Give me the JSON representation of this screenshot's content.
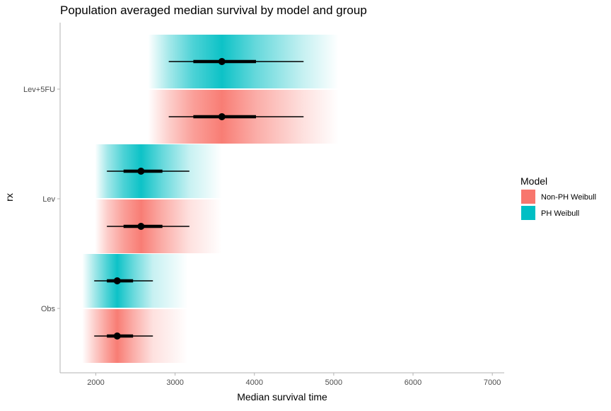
{
  "chart_data": {
    "type": "interval",
    "title": "Population averaged median survival by model and group",
    "xlabel": "Median survival time",
    "ylabel": "rx",
    "xlim": [
      1550,
      7150
    ],
    "x_ticks": [
      2000,
      3000,
      4000,
      5000,
      6000,
      7000
    ],
    "x_tick_labels": [
      "2000",
      "3000",
      "4000",
      "5000",
      "6000",
      "7000"
    ],
    "categories": [
      "Obs",
      "Lev",
      "Lev+5FU"
    ],
    "legend": {
      "title": "Model",
      "position": "right",
      "entries": [
        {
          "name": "Non-PH Weibull",
          "color": "#F8766D"
        },
        {
          "name": "PH Weibull",
          "color": "#00BFC4"
        }
      ]
    },
    "grid": false,
    "series": [
      {
        "name": "Non-PH Weibull",
        "color": "#F8766D",
        "points": [
          {
            "category": "Obs",
            "median": 2270,
            "inner": [
              2140,
              2470
            ],
            "outer": [
              1980,
              2720
            ],
            "gradient_range": [
              1830,
              3160
            ]
          },
          {
            "category": "Lev",
            "median": 2570,
            "inner": [
              2350,
              2840
            ],
            "outer": [
              2140,
              3180
            ],
            "gradient_range": [
              1990,
              3590
            ]
          },
          {
            "category": "Lev+5FU",
            "median": 3590,
            "inner": [
              3230,
              4020
            ],
            "outer": [
              2920,
              4620
            ],
            "gradient_range": [
              2660,
              5060
            ]
          }
        ]
      },
      {
        "name": "PH Weibull",
        "color": "#00BFC4",
        "points": [
          {
            "category": "Obs",
            "median": 2270,
            "inner": [
              2140,
              2470
            ],
            "outer": [
              1980,
              2720
            ],
            "gradient_range": [
              1830,
              3160
            ]
          },
          {
            "category": "Lev",
            "median": 2570,
            "inner": [
              2350,
              2840
            ],
            "outer": [
              2140,
              3180
            ],
            "gradient_range": [
              1990,
              3590
            ]
          },
          {
            "category": "Lev+5FU",
            "median": 3590,
            "inner": [
              3230,
              4020
            ],
            "outer": [
              2920,
              4620
            ],
            "gradient_range": [
              2660,
              5060
            ]
          }
        ]
      }
    ]
  }
}
